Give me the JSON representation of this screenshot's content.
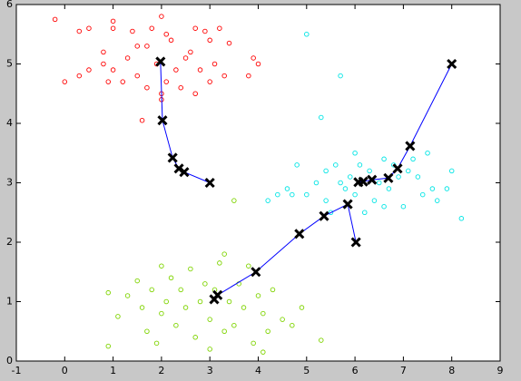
{
  "chart_data": {
    "type": "scatter",
    "xlim": [
      -1,
      9
    ],
    "ylim": [
      0,
      6
    ],
    "xticks": [
      -1,
      0,
      1,
      2,
      3,
      4,
      5,
      6,
      7,
      8,
      9
    ],
    "yticks": [
      0,
      1,
      2,
      3,
      4,
      5,
      6
    ],
    "grid": false,
    "series": [
      {
        "mode": "markers",
        "marker": "o",
        "color": "#ff0000",
        "x": [
          -0.2,
          0.3,
          0.5,
          0.8,
          1.0,
          1.0,
          1.4,
          1.5,
          1.8,
          2.0,
          2.1,
          2.2,
          2.7,
          2.9,
          3.0,
          3.2,
          3.4,
          3.9,
          4.0,
          3.8,
          3.3,
          3.0,
          2.8,
          2.5,
          2.3,
          2.1,
          2.0,
          1.7,
          1.5,
          1.2,
          1.0,
          0.8,
          0.5,
          0.3,
          0.0,
          1.6,
          2.0,
          2.7,
          1.3,
          2.6,
          1.9,
          2.4,
          0.9,
          3.1,
          1.7
        ],
        "y": [
          5.75,
          5.55,
          5.6,
          5.2,
          5.72,
          5.6,
          5.55,
          5.3,
          5.6,
          5.8,
          5.5,
          5.4,
          5.6,
          5.55,
          5.4,
          5.6,
          5.35,
          5.1,
          5.0,
          4.8,
          4.8,
          4.7,
          4.9,
          5.1,
          4.9,
          4.7,
          4.4,
          4.6,
          4.8,
          4.7,
          4.9,
          5.0,
          4.9,
          4.8,
          4.7,
          4.05,
          4.5,
          4.5,
          5.1,
          5.2,
          5.0,
          4.6,
          4.7,
          5.0,
          5.3
        ]
      },
      {
        "mode": "markers",
        "marker": "o",
        "color": "#00e5e5",
        "x": [
          5.0,
          5.7,
          5.3,
          4.2,
          4.6,
          4.8,
          4.7,
          5.0,
          5.2,
          5.4,
          5.5,
          5.6,
          5.8,
          5.9,
          6.0,
          6.1,
          6.3,
          6.4,
          6.5,
          6.6,
          6.7,
          6.9,
          7.0,
          7.2,
          7.3,
          7.5,
          7.6,
          7.7,
          7.9,
          8.0,
          8.2,
          6.2,
          5.4,
          6.8,
          7.4,
          5.7,
          6.6,
          7.1,
          4.4,
          6.0
        ],
        "y": [
          5.5,
          4.8,
          4.1,
          2.7,
          2.9,
          3.3,
          2.8,
          2.8,
          3.0,
          3.2,
          2.5,
          3.3,
          2.9,
          3.1,
          2.8,
          3.3,
          3.2,
          2.7,
          3.0,
          3.4,
          2.9,
          3.1,
          2.6,
          3.4,
          3.1,
          3.5,
          2.9,
          2.7,
          2.9,
          3.2,
          2.4,
          2.5,
          2.7,
          3.3,
          2.8,
          3.0,
          2.6,
          3.2,
          2.8,
          3.5
        ]
      },
      {
        "mode": "markers",
        "marker": "o",
        "color": "#7fd400",
        "x": [
          0.9,
          0.9,
          1.1,
          1.3,
          1.5,
          1.6,
          1.7,
          1.8,
          2.0,
          2.1,
          2.2,
          2.3,
          2.4,
          2.5,
          2.6,
          2.7,
          2.8,
          2.9,
          3.0,
          3.1,
          3.2,
          3.3,
          3.4,
          3.5,
          3.6,
          3.7,
          3.8,
          3.9,
          4.0,
          4.1,
          4.2,
          4.3,
          4.5,
          4.7,
          4.9,
          5.3,
          3.5,
          3.0,
          2.0,
          3.3,
          1.9,
          4.1
        ],
        "y": [
          0.25,
          1.15,
          0.75,
          1.1,
          1.35,
          0.9,
          0.5,
          1.2,
          0.8,
          1.0,
          1.4,
          0.6,
          1.2,
          0.9,
          1.55,
          0.4,
          1.0,
          1.3,
          0.7,
          1.2,
          1.65,
          0.5,
          1.0,
          0.6,
          1.3,
          0.9,
          1.6,
          0.3,
          1.1,
          0.8,
          0.5,
          1.2,
          0.7,
          0.6,
          0.9,
          0.35,
          2.7,
          0.2,
          1.6,
          1.8,
          0.3,
          0.15
        ]
      },
      {
        "mode": "lines+markers",
        "marker": "x",
        "color": "#0000ff",
        "marker_color": "#000000",
        "x": [
          3.0,
          2.47,
          2.36,
          2.23,
          2.02,
          1.98
        ],
        "y": [
          3.0,
          3.18,
          3.24,
          3.42,
          4.05,
          5.04
        ]
      },
      {
        "mode": "lines+markers",
        "marker": "x",
        "color": "#0000ff",
        "marker_color": "#000000",
        "x": [
          8.0,
          7.14,
          6.88,
          6.69,
          6.35,
          6.17,
          6.07
        ],
        "y": [
          5.0,
          3.62,
          3.24,
          3.08,
          3.05,
          3.02,
          3.01
        ]
      },
      {
        "mode": "lines+markers",
        "marker": "x",
        "color": "#0000ff",
        "marker_color": "#000000",
        "x": [
          6.02,
          5.85,
          5.36,
          4.85,
          3.95,
          3.16,
          3.09
        ],
        "y": [
          2.0,
          2.64,
          2.44,
          2.14,
          1.5,
          1.11,
          1.04
        ]
      }
    ]
  }
}
